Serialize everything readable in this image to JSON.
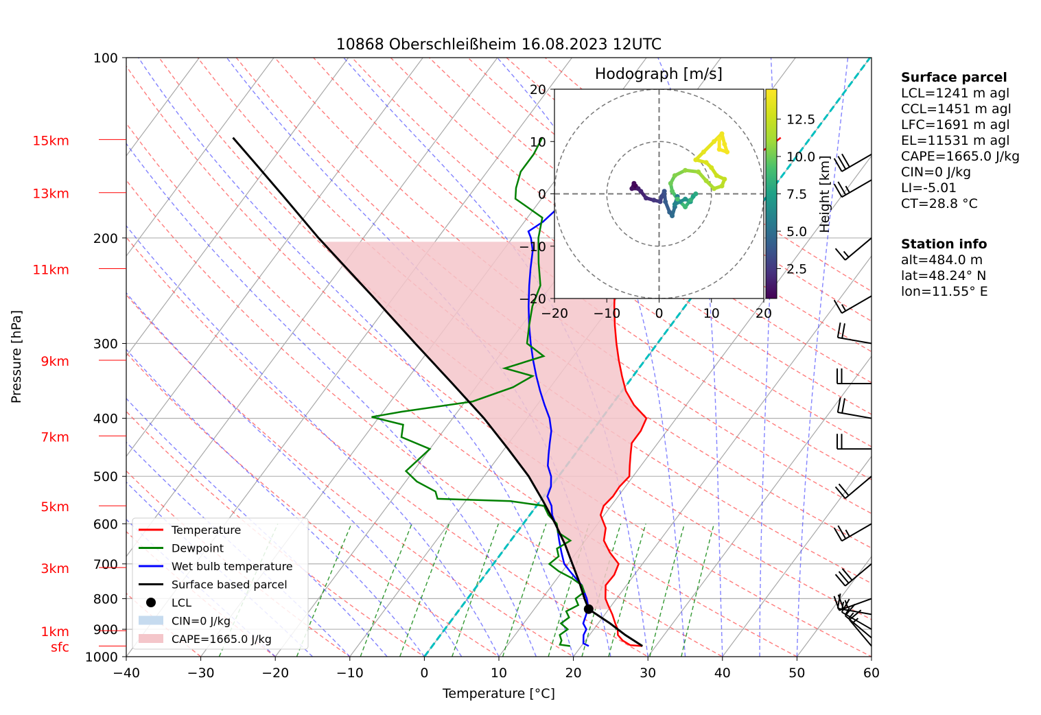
{
  "chart_data": {
    "type": "skew-t",
    "title": "10868 Oberschleißheim 16.08.2023 12UTC",
    "xlabel": "Temperature [°C]",
    "ylabel": "Pressure [hPa]",
    "xlim": [
      -40,
      60
    ],
    "ylim": [
      1000,
      100
    ],
    "x_ticks": [
      "−40",
      "−30",
      "−20",
      "−10",
      "0",
      "10",
      "20",
      "30",
      "40",
      "50",
      "60"
    ],
    "y_ticks": [
      {
        "p": 100,
        "label": "100"
      },
      {
        "p": 200,
        "label": "200"
      },
      {
        "p": 300,
        "label": "300"
      },
      {
        "p": 400,
        "label": "400"
      },
      {
        "p": 500,
        "label": "500"
      },
      {
        "p": 600,
        "label": "600"
      },
      {
        "p": 700,
        "label": "700"
      },
      {
        "p": 800,
        "label": "800"
      },
      {
        "p": 900,
        "label": "900"
      },
      {
        "p": 1000,
        "label": "1000"
      }
    ],
    "height_labels": [
      {
        "label": "15km",
        "p": 137
      },
      {
        "label": "13km",
        "p": 168
      },
      {
        "label": "11km",
        "p": 225
      },
      {
        "label": "9km",
        "p": 320
      },
      {
        "label": "7km",
        "p": 428
      },
      {
        "label": "5km",
        "p": 560
      },
      {
        "label": "3km",
        "p": 710
      },
      {
        "label": "1km",
        "p": 905
      },
      {
        "label": "sfc",
        "p": 960
      }
    ],
    "temperature": [
      {
        "p": 960,
        "t": 28.2
      },
      {
        "p": 957,
        "t": 26.5
      },
      {
        "p": 940,
        "t": 25.0
      },
      {
        "p": 920,
        "t": 23.8
      },
      {
        "p": 900,
        "t": 23.2
      },
      {
        "p": 880,
        "t": 22.3
      },
      {
        "p": 850,
        "t": 21.0
      },
      {
        "p": 820,
        "t": 19.5
      },
      {
        "p": 800,
        "t": 18.5
      },
      {
        "p": 760,
        "t": 17.2
      },
      {
        "p": 730,
        "t": 17.3
      },
      {
        "p": 700,
        "t": 16.8
      },
      {
        "p": 670,
        "t": 14.5
      },
      {
        "p": 640,
        "t": 12.5
      },
      {
        "p": 610,
        "t": 11.5
      },
      {
        "p": 580,
        "t": 9.5
      },
      {
        "p": 560,
        "t": 9.0
      },
      {
        "p": 540,
        "t": 9.3
      },
      {
        "p": 520,
        "t": 9.2
      },
      {
        "p": 500,
        "t": 9.5
      },
      {
        "p": 480,
        "t": 8.5
      },
      {
        "p": 460,
        "t": 7.5
      },
      {
        "p": 440,
        "t": 6.5
      },
      {
        "p": 420,
        "t": 6.5
      },
      {
        "p": 400,
        "t": 6.0
      },
      {
        "p": 380,
        "t": 3.0
      },
      {
        "p": 360,
        "t": 0.5
      },
      {
        "p": 340,
        "t": -1.5
      },
      {
        "p": 320,
        "t": -3.5
      },
      {
        "p": 300,
        "t": -5.5
      },
      {
        "p": 280,
        "t": -7.5
      },
      {
        "p": 260,
        "t": -9.5
      },
      {
        "p": 240,
        "t": -11.5
      },
      {
        "p": 225,
        "t": -13.0
      },
      {
        "p": 210,
        "t": -15.5
      },
      {
        "p": 200,
        "t": -17.0
      },
      {
        "p": 195,
        "t": -18.0
      },
      {
        "p": 188,
        "t": -16.5
      },
      {
        "p": 180,
        "t": -15.5
      },
      {
        "p": 172,
        "t": -15.5
      },
      {
        "p": 166,
        "t": -12.0
      },
      {
        "p": 160,
        "t": -8.0
      },
      {
        "p": 152,
        "t": -7.0
      },
      {
        "p": 145,
        "t": -5.5
      },
      {
        "p": 140,
        "t": -4.5
      },
      {
        "p": 136,
        "t": -4.0
      }
    ],
    "dewpoint": [
      {
        "p": 960,
        "t": 18.5
      },
      {
        "p": 955,
        "t": 17.0
      },
      {
        "p": 940,
        "t": 16.8
      },
      {
        "p": 920,
        "t": 16.0
      },
      {
        "p": 900,
        "t": 16.5
      },
      {
        "p": 880,
        "t": 15.0
      },
      {
        "p": 860,
        "t": 15.5
      },
      {
        "p": 840,
        "t": 14.5
      },
      {
        "p": 820,
        "t": 15.5
      },
      {
        "p": 800,
        "t": 14.5
      },
      {
        "p": 780,
        "t": 15.0
      },
      {
        "p": 760,
        "t": 14.0
      },
      {
        "p": 740,
        "t": 12.0
      },
      {
        "p": 720,
        "t": 9.5
      },
      {
        "p": 700,
        "t": 7.5
      },
      {
        "p": 680,
        "t": 8.0
      },
      {
        "p": 660,
        "t": 7.0
      },
      {
        "p": 640,
        "t": 8.0
      },
      {
        "p": 620,
        "t": 5.5
      },
      {
        "p": 600,
        "t": 4.5
      },
      {
        "p": 580,
        "t": 2.5
      },
      {
        "p": 560,
        "t": 1.0
      },
      {
        "p": 550,
        "t": -4.0
      },
      {
        "p": 545,
        "t": -14.0
      },
      {
        "p": 530,
        "t": -15.0
      },
      {
        "p": 510,
        "t": -18.5
      },
      {
        "p": 490,
        "t": -21.0
      },
      {
        "p": 470,
        "t": -20.5
      },
      {
        "p": 450,
        "t": -20.0
      },
      {
        "p": 430,
        "t": -25.0
      },
      {
        "p": 410,
        "t": -26.0
      },
      {
        "p": 398,
        "t": -31.0
      },
      {
        "p": 390,
        "t": -27.5
      },
      {
        "p": 375,
        "t": -19.0
      },
      {
        "p": 355,
        "t": -15.0
      },
      {
        "p": 340,
        "t": -13.5
      },
      {
        "p": 330,
        "t": -18.0
      },
      {
        "p": 315,
        "t": -14.0
      },
      {
        "p": 300,
        "t": -17.5
      },
      {
        "p": 280,
        "t": -19.0
      },
      {
        "p": 260,
        "t": -20.5
      },
      {
        "p": 240,
        "t": -21.5
      },
      {
        "p": 220,
        "t": -24.0
      },
      {
        "p": 200,
        "t": -26.5
      },
      {
        "p": 185,
        "t": -28.0
      },
      {
        "p": 172,
        "t": -33.5
      },
      {
        "p": 165,
        "t": -34.5
      },
      {
        "p": 155,
        "t": -35.5
      },
      {
        "p": 145,
        "t": -35.5
      },
      {
        "p": 136,
        "t": -36.0
      }
    ],
    "wetbulb": [
      {
        "p": 960,
        "t": 21.0
      },
      {
        "p": 950,
        "t": 20.0
      },
      {
        "p": 920,
        "t": 19.2
      },
      {
        "p": 900,
        "t": 19.0
      },
      {
        "p": 880,
        "t": 18.0
      },
      {
        "p": 850,
        "t": 17.5
      },
      {
        "p": 820,
        "t": 16.8
      },
      {
        "p": 800,
        "t": 16.0
      },
      {
        "p": 780,
        "t": 15.0
      },
      {
        "p": 760,
        "t": 14.0
      },
      {
        "p": 740,
        "t": 12.5
      },
      {
        "p": 720,
        "t": 11.0
      },
      {
        "p": 700,
        "t": 9.5
      },
      {
        "p": 670,
        "t": 8.0
      },
      {
        "p": 640,
        "t": 6.5
      },
      {
        "p": 610,
        "t": 5.0
      },
      {
        "p": 580,
        "t": 3.0
      },
      {
        "p": 560,
        "t": 2.0
      },
      {
        "p": 540,
        "t": 0.5
      },
      {
        "p": 520,
        "t": 0.0
      },
      {
        "p": 500,
        "t": -1.0
      },
      {
        "p": 480,
        "t": -2.5
      },
      {
        "p": 460,
        "t": -3.5
      },
      {
        "p": 440,
        "t": -4.5
      },
      {
        "p": 420,
        "t": -5.5
      },
      {
        "p": 400,
        "t": -7.0
      },
      {
        "p": 380,
        "t": -9.0
      },
      {
        "p": 360,
        "t": -11.0
      },
      {
        "p": 340,
        "t": -13.0
      },
      {
        "p": 320,
        "t": -15.0
      },
      {
        "p": 300,
        "t": -17.0
      },
      {
        "p": 280,
        "t": -19.0
      },
      {
        "p": 260,
        "t": -21.0
      },
      {
        "p": 240,
        "t": -23.0
      },
      {
        "p": 225,
        "t": -24.5
      },
      {
        "p": 210,
        "t": -26.0
      },
      {
        "p": 200,
        "t": -27.5
      },
      {
        "p": 195,
        "t": -28.5
      },
      {
        "p": 188,
        "t": -27.5
      },
      {
        "p": 180,
        "t": -27.0
      },
      {
        "p": 172,
        "t": -27.5
      },
      {
        "p": 166,
        "t": -24.5
      },
      {
        "p": 160,
        "t": -21.5
      },
      {
        "p": 152,
        "t": -20.5
      },
      {
        "p": 145,
        "t": -19.0
      },
      {
        "p": 140,
        "t": -18.0
      },
      {
        "p": 136,
        "t": -17.5
      }
    ],
    "parcel": [
      {
        "p": 960,
        "t": 28.2
      },
      {
        "p": 920,
        "t": 24.8
      },
      {
        "p": 880,
        "t": 21.6
      },
      {
        "p": 833,
        "t": 17.3
      },
      {
        "p": 800,
        "t": 15.7
      },
      {
        "p": 750,
        "t": 13.3
      },
      {
        "p": 700,
        "t": 10.6
      },
      {
        "p": 650,
        "t": 7.7
      },
      {
        "p": 600,
        "t": 4.3
      },
      {
        "p": 550,
        "t": 0.4
      },
      {
        "p": 500,
        "t": -4.0
      },
      {
        "p": 450,
        "t": -9.5
      },
      {
        "p": 400,
        "t": -15.8
      },
      {
        "p": 350,
        "t": -23.5
      },
      {
        "p": 300,
        "t": -32.5
      },
      {
        "p": 250,
        "t": -43.0
      },
      {
        "p": 200,
        "t": -56.0
      },
      {
        "p": 170,
        "t": -65.0
      },
      {
        "p": 150,
        "t": -72.0
      },
      {
        "p": 136,
        "t": -77.5
      }
    ],
    "lcl": {
      "p": 833,
      "t": 17.3
    },
    "cape_fill_range": [
      833,
      200
    ],
    "isotherm_0": 0,
    "wind_barbs": [
      {
        "p": 960,
        "speed": 15,
        "dir": 320
      },
      {
        "p": 930,
        "speed": 15,
        "dir": 310
      },
      {
        "p": 900,
        "speed": 15,
        "dir": 300
      },
      {
        "p": 850,
        "speed": 15,
        "dir": 280
      },
      {
        "p": 800,
        "speed": 25,
        "dir": 250
      },
      {
        "p": 700,
        "speed": 30,
        "dir": 230
      },
      {
        "p": 600,
        "speed": 25,
        "dir": 240
      },
      {
        "p": 500,
        "speed": 20,
        "dir": 230
      },
      {
        "p": 450,
        "speed": 20,
        "dir": 270
      },
      {
        "p": 400,
        "speed": 20,
        "dir": 280
      },
      {
        "p": 350,
        "speed": 20,
        "dir": 270
      },
      {
        "p": 300,
        "speed": 20,
        "dir": 280
      },
      {
        "p": 250,
        "speed": 15,
        "dir": 240
      },
      {
        "p": 200,
        "speed": 15,
        "dir": 230
      },
      {
        "p": 160,
        "speed": 25,
        "dir": 240
      },
      {
        "p": 145,
        "speed": 30,
        "dir": 240
      }
    ],
    "legend": {
      "placement": "lower-left",
      "entries": [
        {
          "label": "Temperature",
          "color": "#ff0000",
          "kind": "line"
        },
        {
          "label": "Dewpoint",
          "color": "#008000",
          "kind": "line"
        },
        {
          "label": "Wet bulb temperature",
          "color": "#0000ff",
          "kind": "line"
        },
        {
          "label": "Surface based parcel",
          "color": "#000000",
          "kind": "line"
        },
        {
          "label": "LCL",
          "color": "#000000",
          "kind": "dot"
        },
        {
          "label": "CIN=0 J/kg",
          "color": "#c6dbef",
          "kind": "patch"
        },
        {
          "label": "CAPE=1665.0 J/kg",
          "color": "#f4c6ca",
          "kind": "patch"
        }
      ]
    },
    "hodograph": {
      "title": "Hodograph [m/s]",
      "xlim": [
        -20,
        20
      ],
      "ylim": [
        -20,
        20
      ],
      "x_ticks": [
        "−20",
        "−10",
        "0",
        "10",
        "20"
      ],
      "y_ticks": [
        "20",
        "10",
        "0",
        "−10",
        "−20"
      ],
      "rings": [
        10,
        20
      ],
      "colorbar_label": "Height [km]",
      "colorbar_ticks": [
        "2.5",
        "5.0",
        "7.5",
        "10.0",
        "12.5"
      ],
      "colorbar_range": [
        0.5,
        14.5
      ],
      "points": [
        {
          "u": -4.5,
          "v": 1.5,
          "h": 0.5
        },
        {
          "u": -4.8,
          "v": 2.0,
          "h": 0.8
        },
        {
          "u": -5.2,
          "v": 1.0,
          "h": 1.1
        },
        {
          "u": -4.0,
          "v": 1.0,
          "h": 1.4
        },
        {
          "u": -3.5,
          "v": 0.5,
          "h": 1.7
        },
        {
          "u": -2.5,
          "v": -0.8,
          "h": 2.0
        },
        {
          "u": -1.0,
          "v": -1.2,
          "h": 2.4
        },
        {
          "u": 0.2,
          "v": -1.5,
          "h": 2.8
        },
        {
          "u": 0.5,
          "v": -0.5,
          "h": 3.2
        },
        {
          "u": 1.0,
          "v": 0.5,
          "h": 3.6
        },
        {
          "u": 1.2,
          "v": -1.5,
          "h": 4.0
        },
        {
          "u": 2.0,
          "v": -3.5,
          "h": 4.4
        },
        {
          "u": 2.5,
          "v": -4.2,
          "h": 4.8
        },
        {
          "u": 3.0,
          "v": -2.5,
          "h": 5.2
        },
        {
          "u": 3.5,
          "v": -0.5,
          "h": 5.6
        },
        {
          "u": 3.0,
          "v": -2.0,
          "h": 6.0
        },
        {
          "u": 4.0,
          "v": -1.5,
          "h": 6.4
        },
        {
          "u": 5.0,
          "v": -1.0,
          "h": 6.8
        },
        {
          "u": 6.0,
          "v": -1.5,
          "h": 7.2
        },
        {
          "u": 6.5,
          "v": -0.5,
          "h": 7.6
        },
        {
          "u": 7.0,
          "v": 0.0,
          "h": 8.0
        },
        {
          "u": 6.0,
          "v": -1.2,
          "h": 8.4
        },
        {
          "u": 5.0,
          "v": -2.5,
          "h": 8.8
        },
        {
          "u": 3.5,
          "v": -1.0,
          "h": 9.2
        },
        {
          "u": 2.5,
          "v": 0.5,
          "h": 9.6
        },
        {
          "u": 2.2,
          "v": 2.0,
          "h": 10.0
        },
        {
          "u": 3.0,
          "v": 3.5,
          "h": 10.4
        },
        {
          "u": 5.0,
          "v": 4.5,
          "h": 10.8
        },
        {
          "u": 7.5,
          "v": 4.2,
          "h": 11.1
        },
        {
          "u": 9.0,
          "v": 2.5,
          "h": 11.4
        },
        {
          "u": 10.5,
          "v": 1.0,
          "h": 11.7
        },
        {
          "u": 12.0,
          "v": 1.5,
          "h": 12.0
        },
        {
          "u": 12.5,
          "v": 2.8,
          "h": 12.3
        },
        {
          "u": 11.0,
          "v": 3.5,
          "h": 12.6
        },
        {
          "u": 10.0,
          "v": 5.0,
          "h": 12.9
        },
        {
          "u": 9.0,
          "v": 6.0,
          "h": 13.2
        },
        {
          "u": 7.0,
          "v": 6.5,
          "h": 13.4
        },
        {
          "u": 8.5,
          "v": 8.0,
          "h": 13.6
        },
        {
          "u": 10.5,
          "v": 10.0,
          "h": 13.8
        },
        {
          "u": 12.0,
          "v": 11.5,
          "h": 14.0
        },
        {
          "u": 12.5,
          "v": 9.5,
          "h": 14.1
        },
        {
          "u": 13.0,
          "v": 8.0,
          "h": 14.2
        },
        {
          "u": 11.5,
          "v": 8.5,
          "h": 14.3
        },
        {
          "u": 11.5,
          "v": 10.5,
          "h": 14.4
        }
      ]
    }
  },
  "surface_parcel": {
    "heading": "Surface parcel",
    "lines": [
      "LCL=1241 m agl",
      "CCL=1451 m agl",
      "LFC=1691 m agl",
      "EL=11531 m agl",
      "CAPE=1665.0 J/kg",
      "CIN=0 J/kg",
      "LI=-5.01",
      "CT=28.8 °C"
    ]
  },
  "station_info": {
    "heading": "Station info",
    "lines": [
      "alt=484.0 m",
      "lat=48.24° N",
      "lon=11.55° E"
    ]
  }
}
